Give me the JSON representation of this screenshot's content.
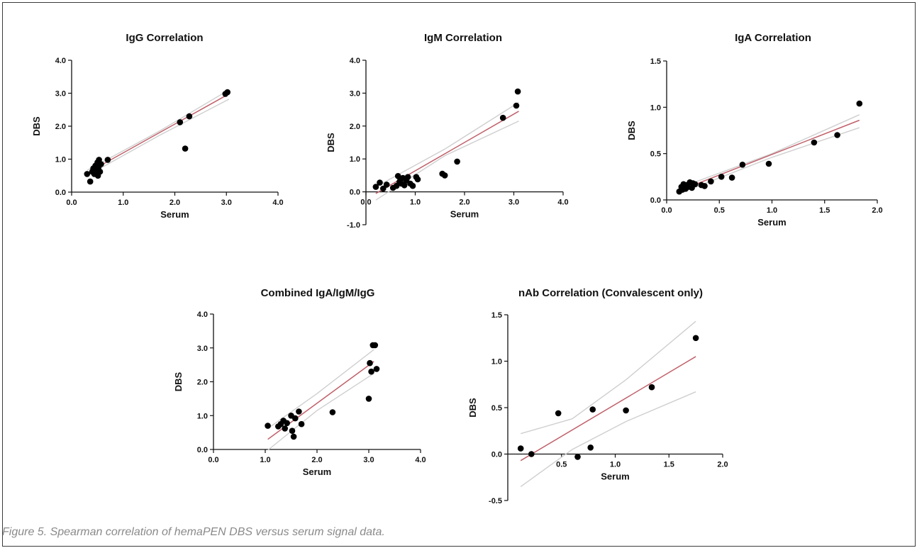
{
  "figure": {
    "caption": "Figure 5. Spearman correlation of hemaPEN DBS versus serum signal data."
  },
  "colors": {
    "fit_line": "#c0606a",
    "ci_band": "#cfcfcf",
    "points": "#000000",
    "axis": "#111111"
  },
  "chart_data": [
    {
      "id": "igg",
      "type": "scatter",
      "title": "IgG Correlation",
      "xlabel": "Serum",
      "ylabel": "DBS",
      "xlim": [
        0,
        4
      ],
      "ylim": [
        0,
        4
      ],
      "xticks": [
        "0.0",
        "1.0",
        "2.0",
        "3.0",
        "4.0"
      ],
      "yticks": [
        "0.0",
        "1.0",
        "2.0",
        "3.0",
        "4.0"
      ],
      "grid": false,
      "points": [
        [
          0.3,
          0.55
        ],
        [
          0.36,
          0.32
        ],
        [
          0.4,
          0.62
        ],
        [
          0.42,
          0.72
        ],
        [
          0.44,
          0.55
        ],
        [
          0.46,
          0.8
        ],
        [
          0.48,
          0.65
        ],
        [
          0.5,
          0.9
        ],
        [
          0.51,
          0.5
        ],
        [
          0.52,
          0.75
        ],
        [
          0.53,
          0.98
        ],
        [
          0.55,
          0.62
        ],
        [
          0.57,
          0.85
        ],
        [
          0.7,
          0.98
        ],
        [
          2.1,
          2.12
        ],
        [
          2.2,
          1.32
        ],
        [
          2.28,
          2.3
        ],
        [
          2.98,
          2.98
        ],
        [
          3.02,
          3.03
        ]
      ],
      "fit": {
        "x": [
          0.3,
          3.05
        ],
        "y": [
          0.58,
          2.98
        ]
      },
      "ci_upper": {
        "x": [
          0.3,
          1.7,
          3.05
        ],
        "y": [
          0.66,
          1.85,
          3.1
        ]
      },
      "ci_lower": {
        "x": [
          0.3,
          1.7,
          3.05
        ],
        "y": [
          0.5,
          1.72,
          2.82
        ]
      }
    },
    {
      "id": "igm",
      "type": "scatter",
      "title": "IgM Correlation",
      "xlabel": "Serum",
      "ylabel": "DBS",
      "xlim": [
        0,
        4
      ],
      "ylim": [
        -1,
        4
      ],
      "xticks": [
        "0.0",
        "1.0",
        "2.0",
        "3.0",
        "4.0"
      ],
      "yticks": [
        "-1.0",
        "0.0",
        "1.0",
        "2.0",
        "3.0",
        "4.0"
      ],
      "grid": false,
      "points": [
        [
          0.2,
          0.15
        ],
        [
          0.28,
          0.28
        ],
        [
          0.35,
          0.1
        ],
        [
          0.42,
          0.22
        ],
        [
          0.55,
          0.12
        ],
        [
          0.62,
          0.18
        ],
        [
          0.65,
          0.48
        ],
        [
          0.68,
          0.3
        ],
        [
          0.7,
          0.38
        ],
        [
          0.72,
          0.25
        ],
        [
          0.75,
          0.42
        ],
        [
          0.78,
          0.2
        ],
        [
          0.82,
          0.35
        ],
        [
          0.85,
          0.45
        ],
        [
          0.9,
          0.25
        ],
        [
          0.95,
          0.18
        ],
        [
          1.02,
          0.45
        ],
        [
          1.05,
          0.38
        ],
        [
          1.55,
          0.55
        ],
        [
          1.6,
          0.5
        ],
        [
          1.85,
          0.92
        ],
        [
          2.78,
          2.25
        ],
        [
          3.05,
          2.62
        ],
        [
          3.08,
          3.05
        ]
      ],
      "fit": {
        "x": [
          0.2,
          3.1
        ],
        "y": [
          -0.05,
          2.45
        ]
      },
      "ci_upper": {
        "x": [
          0.2,
          1.6,
          3.1
        ],
        "y": [
          0.15,
          1.3,
          2.72
        ]
      },
      "ci_lower": {
        "x": [
          0.2,
          1.6,
          3.1
        ],
        "y": [
          -0.25,
          1.1,
          2.15
        ]
      }
    },
    {
      "id": "iga",
      "type": "scatter",
      "title": "IgA Correlation",
      "xlabel": "Serum",
      "ylabel": "DBS",
      "xlim": [
        0,
        2
      ],
      "ylim": [
        0,
        1.5
      ],
      "xticks": [
        "0.0",
        "0.5",
        "1.0",
        "1.5",
        "2.0"
      ],
      "yticks": [
        "0.0",
        "0.5",
        "1.0",
        "1.5"
      ],
      "grid": false,
      "points": [
        [
          0.12,
          0.09
        ],
        [
          0.14,
          0.14
        ],
        [
          0.15,
          0.11
        ],
        [
          0.16,
          0.17
        ],
        [
          0.18,
          0.12
        ],
        [
          0.19,
          0.16
        ],
        [
          0.2,
          0.14
        ],
        [
          0.22,
          0.19
        ],
        [
          0.24,
          0.13
        ],
        [
          0.25,
          0.18
        ],
        [
          0.27,
          0.17
        ],
        [
          0.33,
          0.16
        ],
        [
          0.36,
          0.15
        ],
        [
          0.42,
          0.2
        ],
        [
          0.52,
          0.25
        ],
        [
          0.62,
          0.24
        ],
        [
          0.72,
          0.38
        ],
        [
          0.97,
          0.39
        ],
        [
          1.4,
          0.62
        ],
        [
          1.62,
          0.7
        ],
        [
          1.83,
          1.04
        ]
      ],
      "fit": {
        "x": [
          0.12,
          1.83
        ],
        "y": [
          0.1,
          0.86
        ]
      },
      "ci_upper": {
        "x": [
          0.12,
          1.0,
          1.83
        ],
        "y": [
          0.13,
          0.5,
          0.92
        ]
      },
      "ci_lower": {
        "x": [
          0.12,
          1.0,
          1.83
        ],
        "y": [
          0.07,
          0.46,
          0.78
        ]
      }
    },
    {
      "id": "combined",
      "type": "scatter",
      "title": "Combined IgA/IgM/IgG",
      "xlabel": "Serum",
      "ylabel": "DBS",
      "xlim": [
        0,
        4
      ],
      "ylim": [
        0,
        4
      ],
      "xticks": [
        "0.0",
        "1.0",
        "2.0",
        "3.0",
        "4.0"
      ],
      "yticks": [
        "0.0",
        "1.0",
        "2.0",
        "3.0",
        "4.0"
      ],
      "grid": false,
      "points": [
        [
          1.05,
          0.7
        ],
        [
          1.25,
          0.68
        ],
        [
          1.3,
          0.75
        ],
        [
          1.35,
          0.85
        ],
        [
          1.38,
          0.62
        ],
        [
          1.42,
          0.78
        ],
        [
          1.5,
          1.0
        ],
        [
          1.52,
          0.55
        ],
        [
          1.55,
          0.38
        ],
        [
          1.58,
          0.92
        ],
        [
          1.65,
          1.12
        ],
        [
          1.7,
          0.75
        ],
        [
          2.3,
          1.1
        ],
        [
          3.0,
          1.5
        ],
        [
          3.02,
          2.55
        ],
        [
          3.05,
          2.3
        ],
        [
          3.08,
          3.08
        ],
        [
          3.12,
          3.08
        ],
        [
          3.15,
          2.38
        ]
      ],
      "fit": {
        "x": [
          1.05,
          3.1
        ],
        "y": [
          0.3,
          2.6
        ]
      },
      "ci_upper": {
        "x": [
          1.05,
          2.0,
          3.1
        ],
        "y": [
          0.62,
          1.65,
          2.95
        ]
      },
      "ci_lower": {
        "x": [
          1.05,
          2.0,
          3.1
        ],
        "y": [
          -0.02,
          1.15,
          2.25
        ]
      }
    },
    {
      "id": "nab",
      "type": "scatter",
      "title": "nAb Correlation (Convalescent only)",
      "xlabel": "Serum",
      "ylabel": "DBS",
      "xlim": [
        0,
        2
      ],
      "ylim": [
        -0.5,
        1.5
      ],
      "xticks": [
        "0.5",
        "1.0",
        "1.5",
        "2.0"
      ],
      "xtick_values": [
        0.5,
        1.0,
        1.5,
        2.0
      ],
      "yticks": [
        "-0.5",
        "0.0",
        "0.5",
        "1.0",
        "1.5"
      ],
      "grid": false,
      "points": [
        [
          0.12,
          0.06
        ],
        [
          0.22,
          0.0
        ],
        [
          0.47,
          0.44
        ],
        [
          0.65,
          -0.03
        ],
        [
          0.77,
          0.07
        ],
        [
          0.79,
          0.48
        ],
        [
          1.1,
          0.47
        ],
        [
          1.34,
          0.72
        ],
        [
          1.75,
          1.25
        ]
      ],
      "fit": {
        "x": [
          0.12,
          1.75
        ],
        "y": [
          -0.07,
          1.05
        ]
      },
      "ci_upper": {
        "x": [
          0.12,
          0.6,
          1.1,
          1.75
        ],
        "y": [
          0.22,
          0.38,
          0.8,
          1.43
        ]
      },
      "ci_lower": {
        "x": [
          0.12,
          0.6,
          1.1,
          1.75
        ],
        "y": [
          -0.35,
          0.05,
          0.35,
          0.67
        ]
      }
    }
  ]
}
